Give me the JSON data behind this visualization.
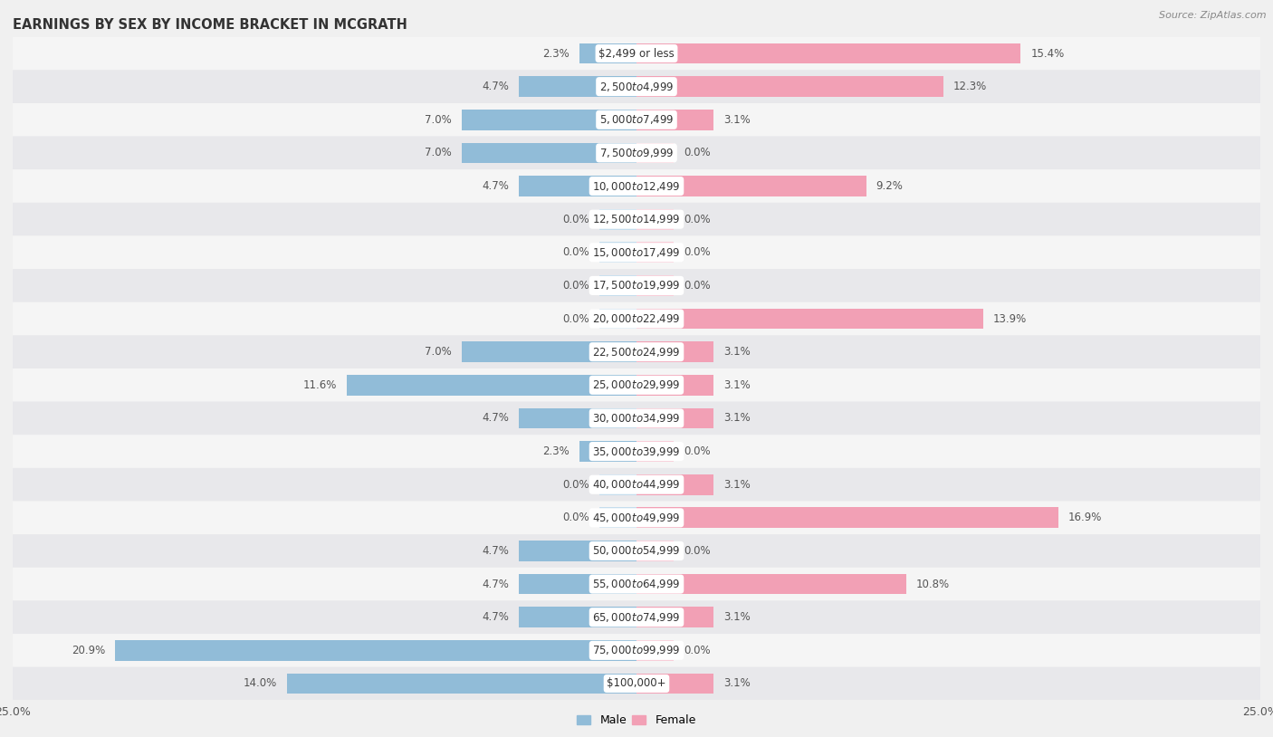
{
  "title": "EARNINGS BY SEX BY INCOME BRACKET IN MCGRATH",
  "source": "Source: ZipAtlas.com",
  "categories": [
    "$2,499 or less",
    "$2,500 to $4,999",
    "$5,000 to $7,499",
    "$7,500 to $9,999",
    "$10,000 to $12,499",
    "$12,500 to $14,999",
    "$15,000 to $17,499",
    "$17,500 to $19,999",
    "$20,000 to $22,499",
    "$22,500 to $24,999",
    "$25,000 to $29,999",
    "$30,000 to $34,999",
    "$35,000 to $39,999",
    "$40,000 to $44,999",
    "$45,000 to $49,999",
    "$50,000 to $54,999",
    "$55,000 to $64,999",
    "$65,000 to $74,999",
    "$75,000 to $99,999",
    "$100,000+"
  ],
  "male_values": [
    2.3,
    4.7,
    7.0,
    7.0,
    4.7,
    0.0,
    0.0,
    0.0,
    0.0,
    7.0,
    11.6,
    4.7,
    2.3,
    0.0,
    0.0,
    4.7,
    4.7,
    4.7,
    20.9,
    14.0
  ],
  "female_values": [
    15.4,
    12.3,
    3.1,
    0.0,
    9.2,
    0.0,
    0.0,
    0.0,
    13.9,
    3.1,
    3.1,
    3.1,
    0.0,
    3.1,
    16.9,
    0.0,
    10.8,
    3.1,
    0.0,
    3.1
  ],
  "male_color": "#91bcd8",
  "female_color": "#f2a0b5",
  "male_color_zero": "#c5dded",
  "female_color_zero": "#f8cdd8",
  "male_label": "Male",
  "female_label": "Female",
  "xlim": 25.0,
  "bar_height": 0.62,
  "row_colors": [
    "#f5f5f5",
    "#e8e8eb"
  ],
  "title_fontsize": 10.5,
  "label_fontsize": 8.5,
  "cat_fontsize": 8.5,
  "tick_fontsize": 9,
  "source_fontsize": 8,
  "zero_bar_width": 1.5
}
